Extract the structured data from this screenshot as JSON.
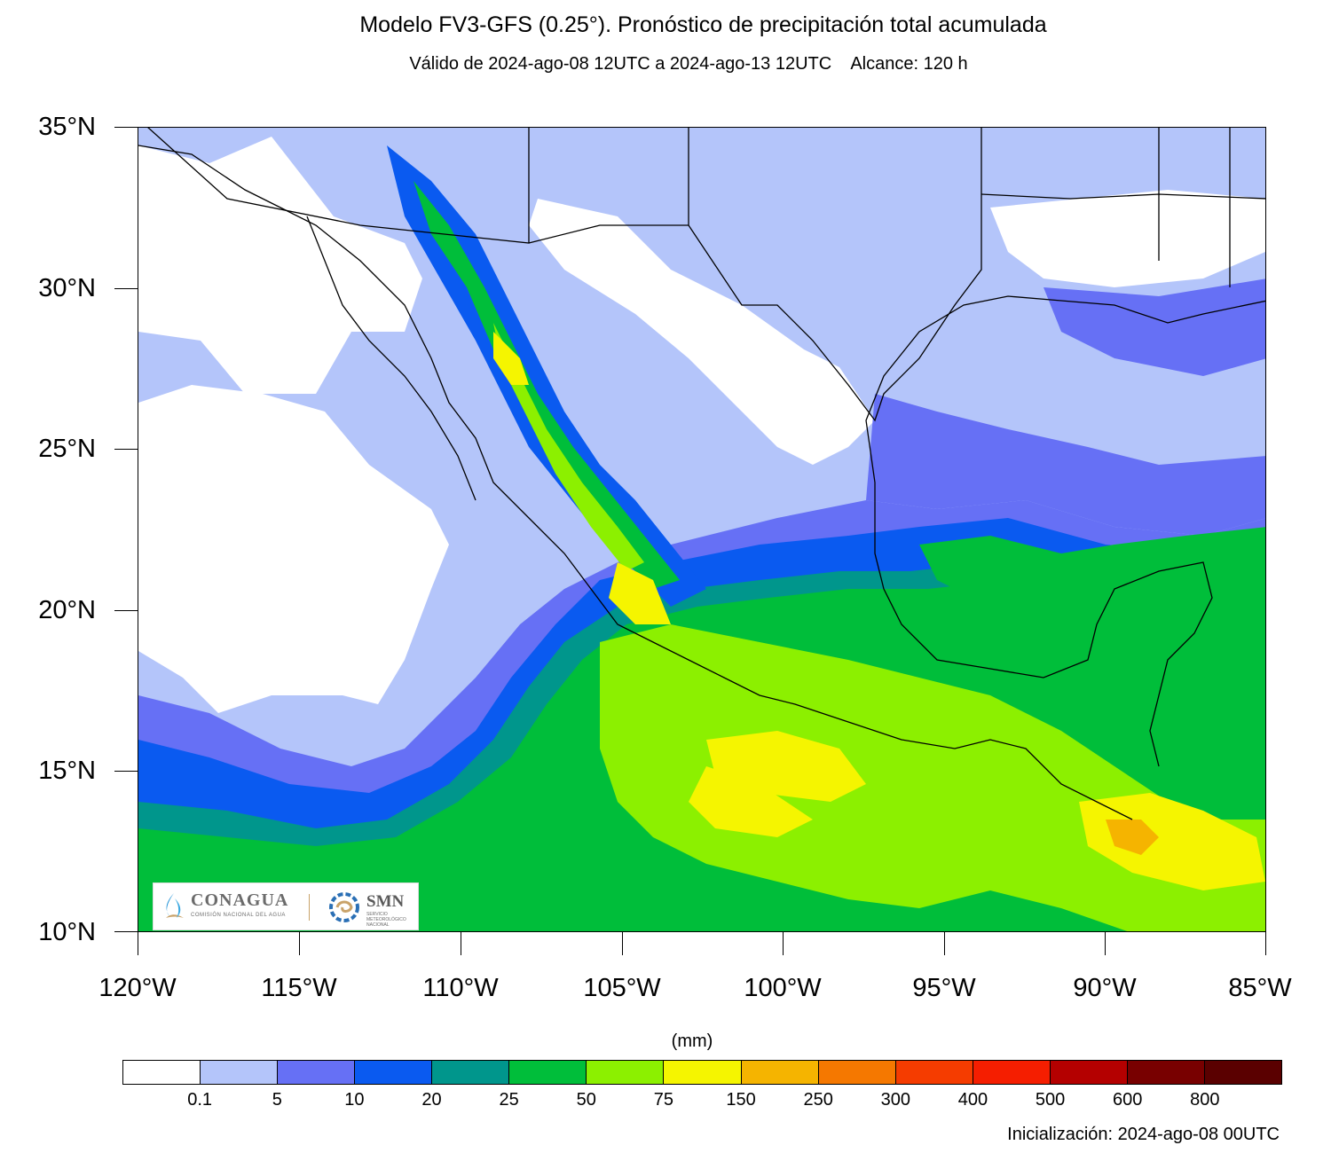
{
  "title": "Modelo FV3-GFS (0.25°). Pronóstico de precipitación total acumulada",
  "subtitle": "Válido de 2024-ago-08 12UTC a 2024-ago-13 12UTC    Alcance: 120 h",
  "axes": {
    "lat_labels": [
      "35°N",
      "30°N",
      "25°N",
      "20°N",
      "15°N",
      "10°N"
    ],
    "lon_labels": [
      "120°W",
      "115°W",
      "110°W",
      "105°W",
      "100°W",
      "95°W",
      "90°W",
      "85°W"
    ]
  },
  "logo": {
    "conagua": "CONAGUA",
    "conagua_sub": "COMISIÓN NACIONAL DEL AGUA",
    "smn": "SMN",
    "smn_sub": "SERVICIO METEOROLÓGICO NACIONAL"
  },
  "legend": {
    "units": "(mm)",
    "labels": [
      "0.1",
      "5",
      "10",
      "20",
      "25",
      "50",
      "75",
      "150",
      "250",
      "300",
      "400",
      "500",
      "600",
      "800"
    ],
    "colors": [
      "#ffffff",
      "#b4c5fa",
      "#6670f5",
      "#0a5af0",
      "#00968c",
      "#00be3a",
      "#8cf000",
      "#f5f500",
      "#f5b400",
      "#f57800",
      "#f53c00",
      "#f51e00",
      "#b40000",
      "#780000",
      "#5a0000"
    ]
  },
  "init_label": "Inicialización: 2024-ago-08 00UTC"
}
